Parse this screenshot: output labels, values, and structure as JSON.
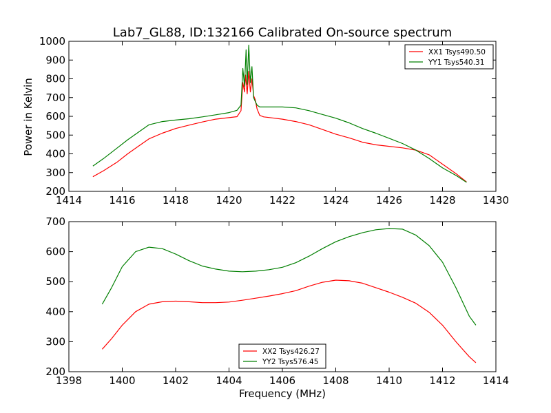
{
  "title": "Lab7_GL88, ID:132166 Calibrated On-source spectrum",
  "colors": {
    "red": "#ff0000",
    "green": "#007f00"
  },
  "chart_data": [
    {
      "type": "line",
      "ylabel": "Power in Kelvin",
      "xlabel": "",
      "xlim": [
        1414,
        1430
      ],
      "ylim": [
        200,
        1000
      ],
      "xticks": [
        1414,
        1416,
        1418,
        1420,
        1422,
        1424,
        1426,
        1428,
        1430
      ],
      "yticks": [
        200,
        300,
        400,
        500,
        600,
        700,
        800,
        900,
        1000
      ],
      "legend": "top-right",
      "series": [
        {
          "name": "XX1 Tsys490.50",
          "color": "#ff0000",
          "points": [
            [
              1414.9,
              278
            ],
            [
              1415.3,
              310
            ],
            [
              1415.8,
              355
            ],
            [
              1416.2,
              400
            ],
            [
              1416.6,
              440
            ],
            [
              1417.0,
              480
            ],
            [
              1417.5,
              510
            ],
            [
              1418.0,
              535
            ],
            [
              1418.5,
              553
            ],
            [
              1419.0,
              570
            ],
            [
              1419.5,
              585
            ],
            [
              1420.0,
              593
            ],
            [
              1420.3,
              598
            ],
            [
              1420.45,
              630
            ],
            [
              1420.52,
              780
            ],
            [
              1420.58,
              730
            ],
            [
              1420.62,
              820
            ],
            [
              1420.68,
              720
            ],
            [
              1420.74,
              840
            ],
            [
              1420.8,
              730
            ],
            [
              1420.86,
              800
            ],
            [
              1420.92,
              710
            ],
            [
              1420.98,
              690
            ],
            [
              1421.05,
              640
            ],
            [
              1421.15,
              605
            ],
            [
              1421.3,
              597
            ],
            [
              1421.6,
              592
            ],
            [
              1422.0,
              585
            ],
            [
              1422.5,
              572
            ],
            [
              1423.0,
              555
            ],
            [
              1423.5,
              530
            ],
            [
              1424.0,
              505
            ],
            [
              1424.5,
              485
            ],
            [
              1425.0,
              462
            ],
            [
              1425.5,
              448
            ],
            [
              1426.0,
              440
            ],
            [
              1426.5,
              432
            ],
            [
              1427.0,
              420
            ],
            [
              1427.5,
              395
            ],
            [
              1428.0,
              345
            ],
            [
              1428.5,
              295
            ],
            [
              1428.9,
              250
            ]
          ]
        },
        {
          "name": "YY1 Tsys540.31",
          "color": "#007f00",
          "points": [
            [
              1414.9,
              335
            ],
            [
              1415.3,
              375
            ],
            [
              1415.8,
              430
            ],
            [
              1416.2,
              475
            ],
            [
              1416.6,
              515
            ],
            [
              1417.0,
              555
            ],
            [
              1417.5,
              572
            ],
            [
              1418.0,
              580
            ],
            [
              1418.5,
              587
            ],
            [
              1419.0,
              597
            ],
            [
              1419.5,
              608
            ],
            [
              1420.0,
              620
            ],
            [
              1420.3,
              632
            ],
            [
              1420.45,
              660
            ],
            [
              1420.52,
              855
            ],
            [
              1420.58,
              760
            ],
            [
              1420.64,
              955
            ],
            [
              1420.68,
              770
            ],
            [
              1420.74,
              980
            ],
            [
              1420.8,
              780
            ],
            [
              1420.86,
              865
            ],
            [
              1420.92,
              700
            ],
            [
              1420.98,
              680
            ],
            [
              1421.05,
              660
            ],
            [
              1421.15,
              650
            ],
            [
              1421.5,
              650
            ],
            [
              1422.0,
              650
            ],
            [
              1422.5,
              645
            ],
            [
              1423.0,
              630
            ],
            [
              1423.5,
              610
            ],
            [
              1424.0,
              590
            ],
            [
              1424.5,
              565
            ],
            [
              1425.0,
              535
            ],
            [
              1425.5,
              510
            ],
            [
              1426.0,
              483
            ],
            [
              1426.5,
              455
            ],
            [
              1427.0,
              420
            ],
            [
              1427.5,
              375
            ],
            [
              1428.0,
              325
            ],
            [
              1428.5,
              285
            ],
            [
              1428.9,
              248
            ]
          ]
        }
      ]
    },
    {
      "type": "line",
      "ylabel": "",
      "xlabel": "Frequency (MHz)",
      "xlim": [
        1398,
        1414
      ],
      "ylim": [
        200,
        700
      ],
      "xticks": [
        1398,
        1400,
        1402,
        1404,
        1406,
        1408,
        1410,
        1412,
        1414
      ],
      "yticks": [
        200,
        300,
        400,
        500,
        600,
        700
      ],
      "legend": "bottom-center",
      "series": [
        {
          "name": "XX2 Tsys426.27",
          "color": "#ff0000",
          "points": [
            [
              1399.25,
              275
            ],
            [
              1399.6,
              310
            ],
            [
              1400.0,
              355
            ],
            [
              1400.5,
              400
            ],
            [
              1401.0,
              425
            ],
            [
              1401.5,
              433
            ],
            [
              1402.0,
              435
            ],
            [
              1402.5,
              433
            ],
            [
              1403.0,
              430
            ],
            [
              1403.5,
              430
            ],
            [
              1404.0,
              432
            ],
            [
              1404.5,
              438
            ],
            [
              1405.0,
              445
            ],
            [
              1405.5,
              452
            ],
            [
              1406.0,
              460
            ],
            [
              1406.5,
              470
            ],
            [
              1407.0,
              485
            ],
            [
              1407.5,
              498
            ],
            [
              1408.0,
              505
            ],
            [
              1408.5,
              503
            ],
            [
              1409.0,
              495
            ],
            [
              1409.5,
              480
            ],
            [
              1410.0,
              465
            ],
            [
              1410.5,
              448
            ],
            [
              1411.0,
              428
            ],
            [
              1411.5,
              398
            ],
            [
              1412.0,
              355
            ],
            [
              1412.5,
              300
            ],
            [
              1413.0,
              250
            ],
            [
              1413.25,
              230
            ]
          ]
        },
        {
          "name": "YY2 Tsys576.45",
          "color": "#007f00",
          "points": [
            [
              1399.25,
              425
            ],
            [
              1399.6,
              480
            ],
            [
              1400.0,
              550
            ],
            [
              1400.5,
              600
            ],
            [
              1401.0,
              615
            ],
            [
              1401.5,
              610
            ],
            [
              1402.0,
              592
            ],
            [
              1402.5,
              570
            ],
            [
              1403.0,
              552
            ],
            [
              1403.5,
              542
            ],
            [
              1404.0,
              535
            ],
            [
              1404.5,
              533
            ],
            [
              1405.0,
              535
            ],
            [
              1405.5,
              540
            ],
            [
              1406.0,
              548
            ],
            [
              1406.5,
              563
            ],
            [
              1407.0,
              585
            ],
            [
              1407.5,
              610
            ],
            [
              1408.0,
              633
            ],
            [
              1408.5,
              650
            ],
            [
              1409.0,
              663
            ],
            [
              1409.5,
              673
            ],
            [
              1410.0,
              677
            ],
            [
              1410.5,
              675
            ],
            [
              1411.0,
              655
            ],
            [
              1411.5,
              620
            ],
            [
              1412.0,
              565
            ],
            [
              1412.5,
              480
            ],
            [
              1413.0,
              385
            ],
            [
              1413.25,
              355
            ]
          ]
        }
      ]
    }
  ]
}
